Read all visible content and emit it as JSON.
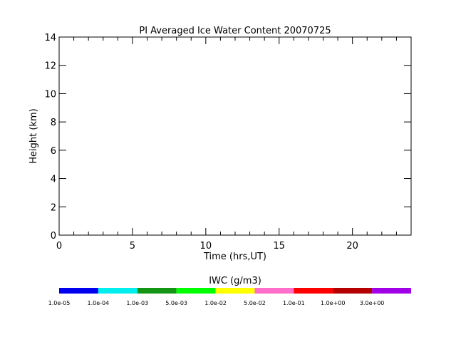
{
  "chart_data": {
    "type": "heatmap",
    "title": "PI Averaged Ice Water Content 20070725",
    "xlabel": "Time (hrs,UT)",
    "ylabel": "Height (km)",
    "xlim": [
      0,
      24
    ],
    "ylim": [
      0,
      14
    ],
    "x_ticks": [
      0,
      5,
      10,
      15,
      20
    ],
    "x_tick_labels": [
      "0",
      "5",
      "10",
      "15",
      "20"
    ],
    "x_minor_step": 1,
    "y_ticks": [
      0,
      2,
      4,
      6,
      8,
      10,
      12,
      14
    ],
    "y_tick_labels": [
      "0",
      "2",
      "4",
      "6",
      "8",
      "10",
      "12",
      "14"
    ],
    "grid": false,
    "data": [],
    "colorbar": {
      "label": "IWC (g/m3)",
      "colors": [
        "#0000ee",
        "#00eeee",
        "#149614",
        "#00ff00",
        "#ffff00",
        "#ff6ec8",
        "#ff0000",
        "#b40000",
        "#a000e6"
      ],
      "tick_labels": [
        "1.0e-05",
        "1.0e-04",
        "1.0e-03",
        "5.0e-03",
        "1.0e-02",
        "5.0e-02",
        "1.0e-01",
        "1.0e+00",
        "3.0e+00"
      ]
    }
  }
}
